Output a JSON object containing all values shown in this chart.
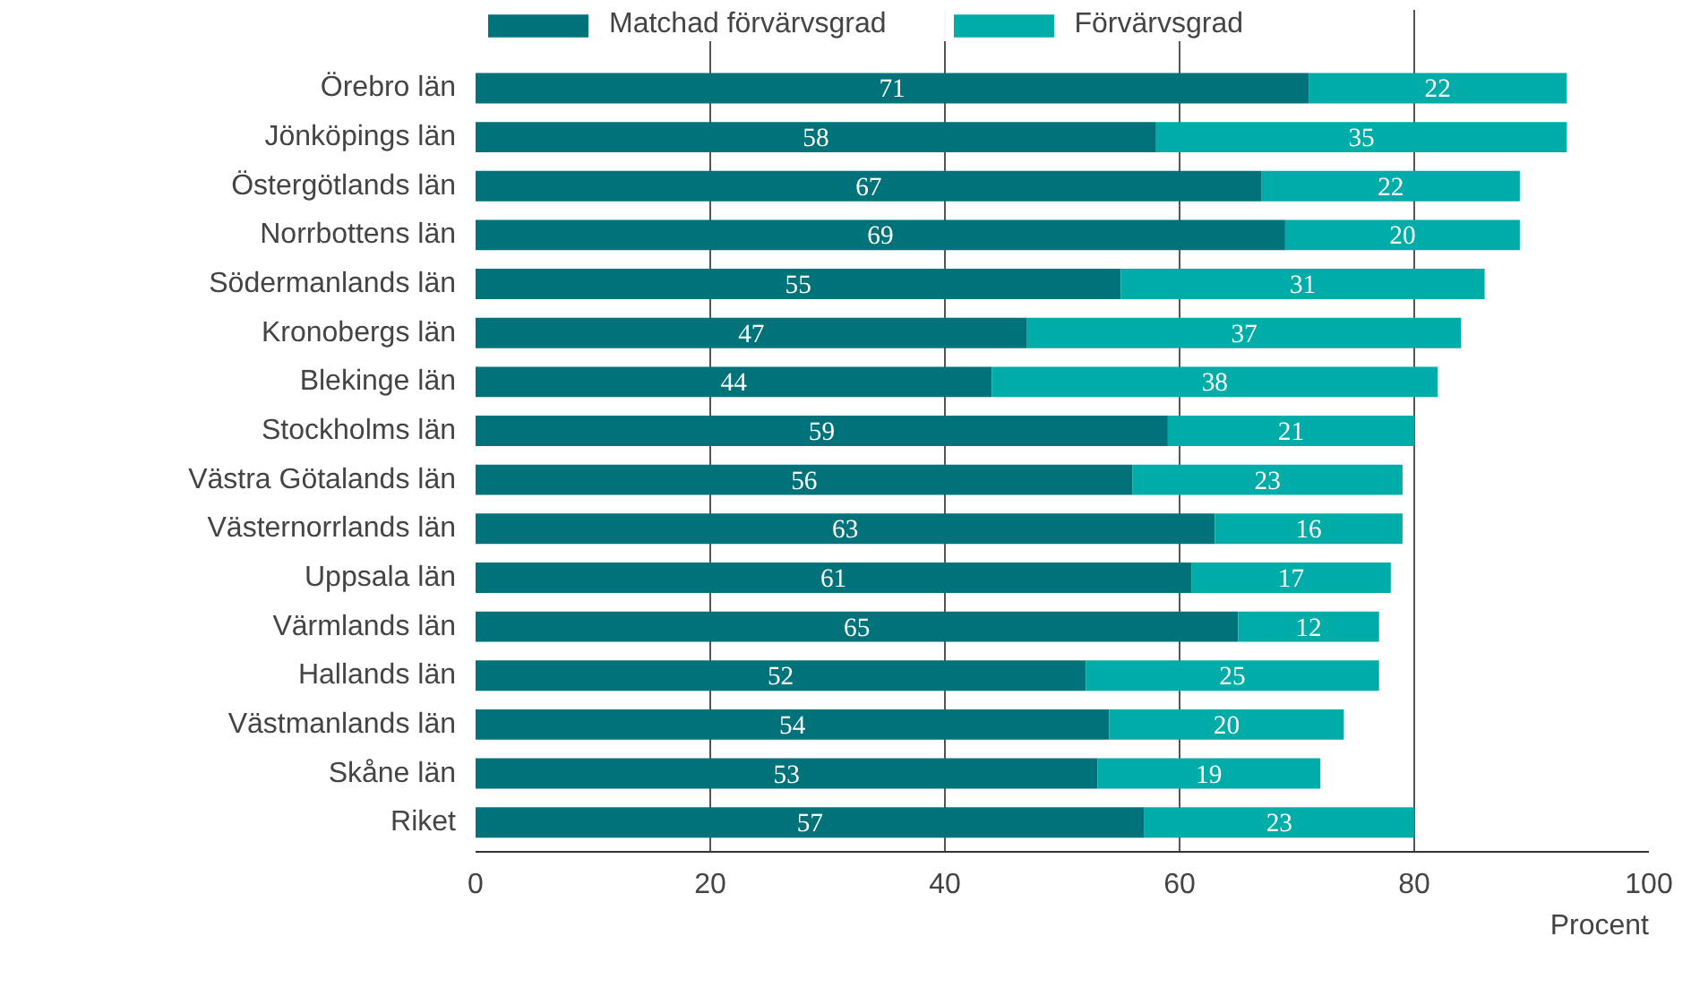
{
  "chart_data": {
    "type": "bar",
    "orientation": "horizontal",
    "stacked": true,
    "categories": [
      "Örebro län",
      "Jönköpings län",
      "Östergötlands län",
      "Norrbottens län",
      "Södermanlands län",
      "Kronobergs län",
      "Blekinge län",
      "Stockholms län",
      "Västra Götalands län",
      "Västernorrlands län",
      "Uppsala län",
      "Värmlands län",
      "Hallands län",
      "Västmanlands län",
      "Skåne län",
      "Riket"
    ],
    "series": [
      {
        "name": "Matchad förvärvsgrad",
        "color": "#00727a",
        "values": [
          71,
          58,
          67,
          69,
          55,
          47,
          44,
          59,
          56,
          63,
          61,
          65,
          52,
          54,
          53,
          57
        ]
      },
      {
        "name": "Förvärvsgrad",
        "color": "#00aca8",
        "values": [
          22,
          35,
          22,
          20,
          31,
          37,
          38,
          21,
          23,
          16,
          17,
          12,
          25,
          20,
          19,
          23
        ]
      }
    ],
    "xlim": [
      0,
      100
    ],
    "xticks": [
      0,
      20,
      40,
      60,
      80,
      100
    ],
    "xlabel": "Procent",
    "grid": "x",
    "legend": "top",
    "data_labels": true
  }
}
